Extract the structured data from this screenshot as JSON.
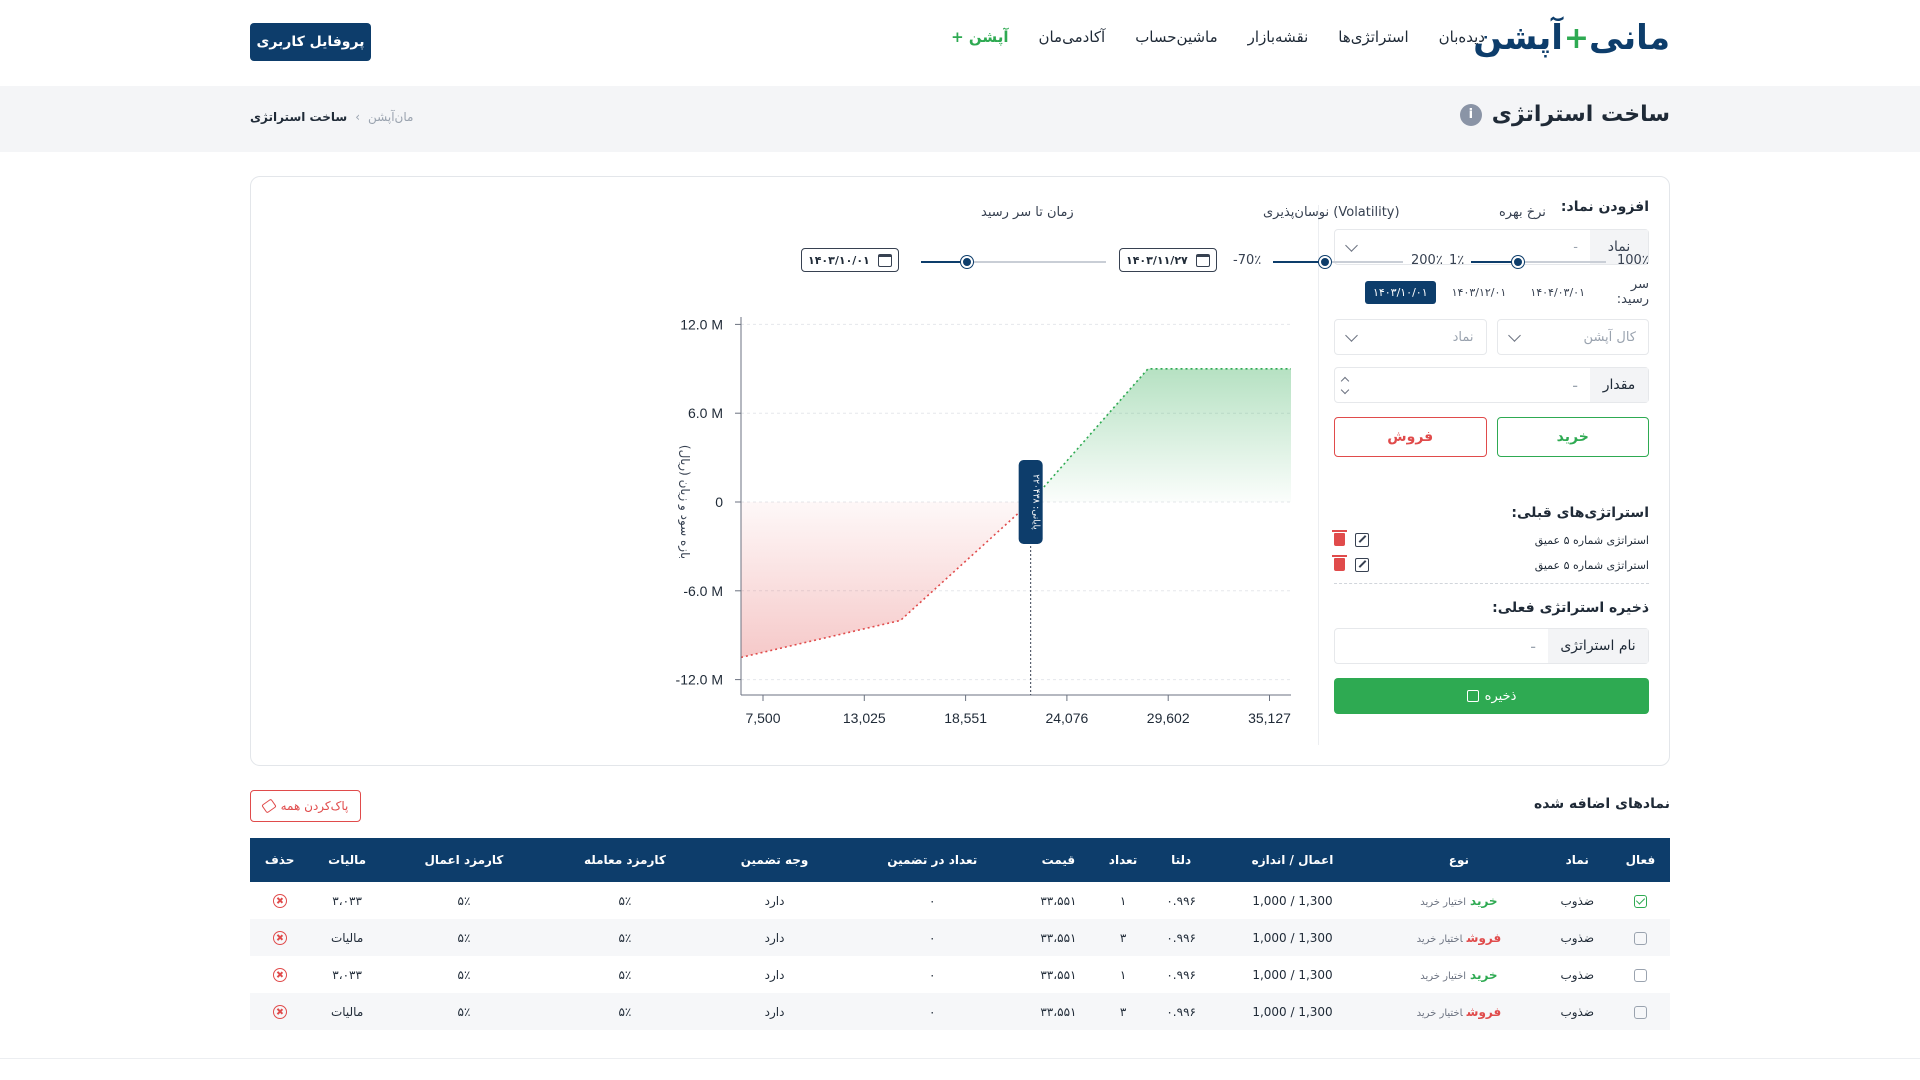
{
  "header": {
    "logo_part1": "مانی",
    "logo_plus": "+",
    "logo_part2": "آپشن",
    "nav": [
      "دیده‌بان",
      "استراتژی‌ها",
      "نقشه‌بازار",
      "ماشین‌حساب",
      "آکادمی‌مان",
      "آپشن +"
    ],
    "profile_button": "پروفایل کاربری"
  },
  "page": {
    "title": "ساخت استراتژی",
    "breadcrumb": [
      "مان‌آپشن",
      "›",
      "ساخت استراتژی"
    ]
  },
  "panel": {
    "add_symbol_title": "افزودن نماد:",
    "symbol_label": "نماد",
    "symbol_value": "-",
    "expiry_label": "سر رسید:",
    "expiry_dates": [
      "۱۴۰۳/۱۰/۰۱",
      "۱۴۰۳/۱۲/۰۱",
      "۱۴۰۴/۰۳/۰۱"
    ],
    "expiry_active_index": 0,
    "option_type_placeholder": "کال آپشن",
    "option_symbol_placeholder": "نماد",
    "amount_label": "مقدار",
    "amount_value": "-",
    "buy_label": "خرید",
    "sell_label": "فروش",
    "prev_title": "استراتژی‌های قبلی:",
    "prev_items": [
      "استراتژی شماره ۵ عمیق",
      "استراتژی شماره ۵ عمیق"
    ],
    "save_title": "ذخیره استراتژی فعلی:",
    "name_label": "نام استراتژی",
    "name_value": "-",
    "save_button": "ذخیره"
  },
  "sliders": {
    "interest_title": "نرخ بهره",
    "interest_min": "1٪",
    "interest_max": "100٪",
    "interest_value_fraction": 0.35,
    "volatility_title": "نوسان‌پذیری (Volatility)",
    "volatility_min": "-70٪",
    "volatility_max": "200٪",
    "volatility_value_fraction": 0.4,
    "time_title": "زمان تا سر رسید",
    "time_start_date": "۱۴۰۳/۱۰/۰۱",
    "time_end_date": "۱۴۰۳/۱۱/۲۷",
    "time_value_fraction": 0.25
  },
  "chart_data": {
    "type": "area",
    "ylabel": "بازه سود و زیان (ریال)",
    "y_tick_labels": [
      "12.0 M",
      "6.0 M",
      "0",
      "-6.0 M",
      "-12.0 M"
    ],
    "y_ticks": [
      12,
      6,
      0,
      -6,
      -12
    ],
    "ylim": [
      -12.5,
      12.5
    ],
    "x_tick_labels": [
      "7,500",
      "13,025",
      "18,551",
      "24,076",
      "29,602",
      "35,127"
    ],
    "x_ticks": [
      7500,
      13025,
      18551,
      24076,
      29602,
      35127
    ],
    "xlim": [
      6300,
      36300
    ],
    "series": [
      {
        "points": [
          [
            6300,
            -10.5
          ],
          [
            15000,
            -8.0
          ],
          [
            22100,
            0.0
          ],
          [
            28500,
            9.0
          ],
          [
            36300,
            9.0
          ]
        ]
      }
    ],
    "breakeven_label": "پایانی: ۲۲۰۴۳۸",
    "breakeven_x": 22100,
    "grid": true,
    "loss_color": "#e04b4b",
    "profit_color": "#2eaa52"
  },
  "added": {
    "title": "نمادهای اضافه شده",
    "clear_all": "پاک‌کردن همه",
    "columns": [
      "فعال",
      "نماد",
      "نوع",
      "اعمال / اندازه",
      "دلتا",
      "تعداد",
      "قیمت",
      "تعداد در تضمین",
      "وجه تضمین",
      "کارمزد معامله",
      "کارمزد اعمال",
      "مالیات",
      "حذف"
    ],
    "rows": [
      {
        "active": true,
        "symbol": "ضذوب",
        "side": "خرید",
        "side_kind": "buy",
        "kind": "اختیار خرید",
        "strike": "1,000 / 1,300",
        "delta": "۰.۹۹۶",
        "qty": "۱",
        "price": "۳۳،۵۵۱",
        "collateral_qty": "۰",
        "collateral": "دارد",
        "trade_fee": "۵٪",
        "exercise_fee": "۵٪",
        "tax": "۳،۰۳۳"
      },
      {
        "active": false,
        "symbol": "ضذوب",
        "side": "فروش",
        "side_kind": "sell",
        "kind": "اختیار خرید",
        "strike": "1,000 / 1,300",
        "delta": "۰.۹۹۶",
        "qty": "۳",
        "price": "۳۳،۵۵۱",
        "collateral_qty": "۰",
        "collateral": "دارد",
        "trade_fee": "۵٪",
        "exercise_fee": "۵٪",
        "tax": "مالیات"
      },
      {
        "active": false,
        "symbol": "ضذوب",
        "side": "خرید",
        "side_kind": "buy",
        "kind": "اختیار خرید",
        "strike": "1,000 / 1,300",
        "delta": "۰.۹۹۶",
        "qty": "۱",
        "price": "۳۳،۵۵۱",
        "collateral_qty": "۰",
        "collateral": "دارد",
        "trade_fee": "۵٪",
        "exercise_fee": "۵٪",
        "tax": "۳،۰۳۳"
      },
      {
        "active": false,
        "symbol": "ضذوب",
        "side": "فروش",
        "side_kind": "sell",
        "kind": "اختیار خرید",
        "strike": "1,000 / 1,300",
        "delta": "۰.۹۹۶",
        "qty": "۳",
        "price": "۳۳،۵۵۱",
        "collateral_qty": "۰",
        "collateral": "دارد",
        "trade_fee": "۵٪",
        "exercise_fee": "۵٪",
        "tax": "مالیات"
      }
    ]
  }
}
